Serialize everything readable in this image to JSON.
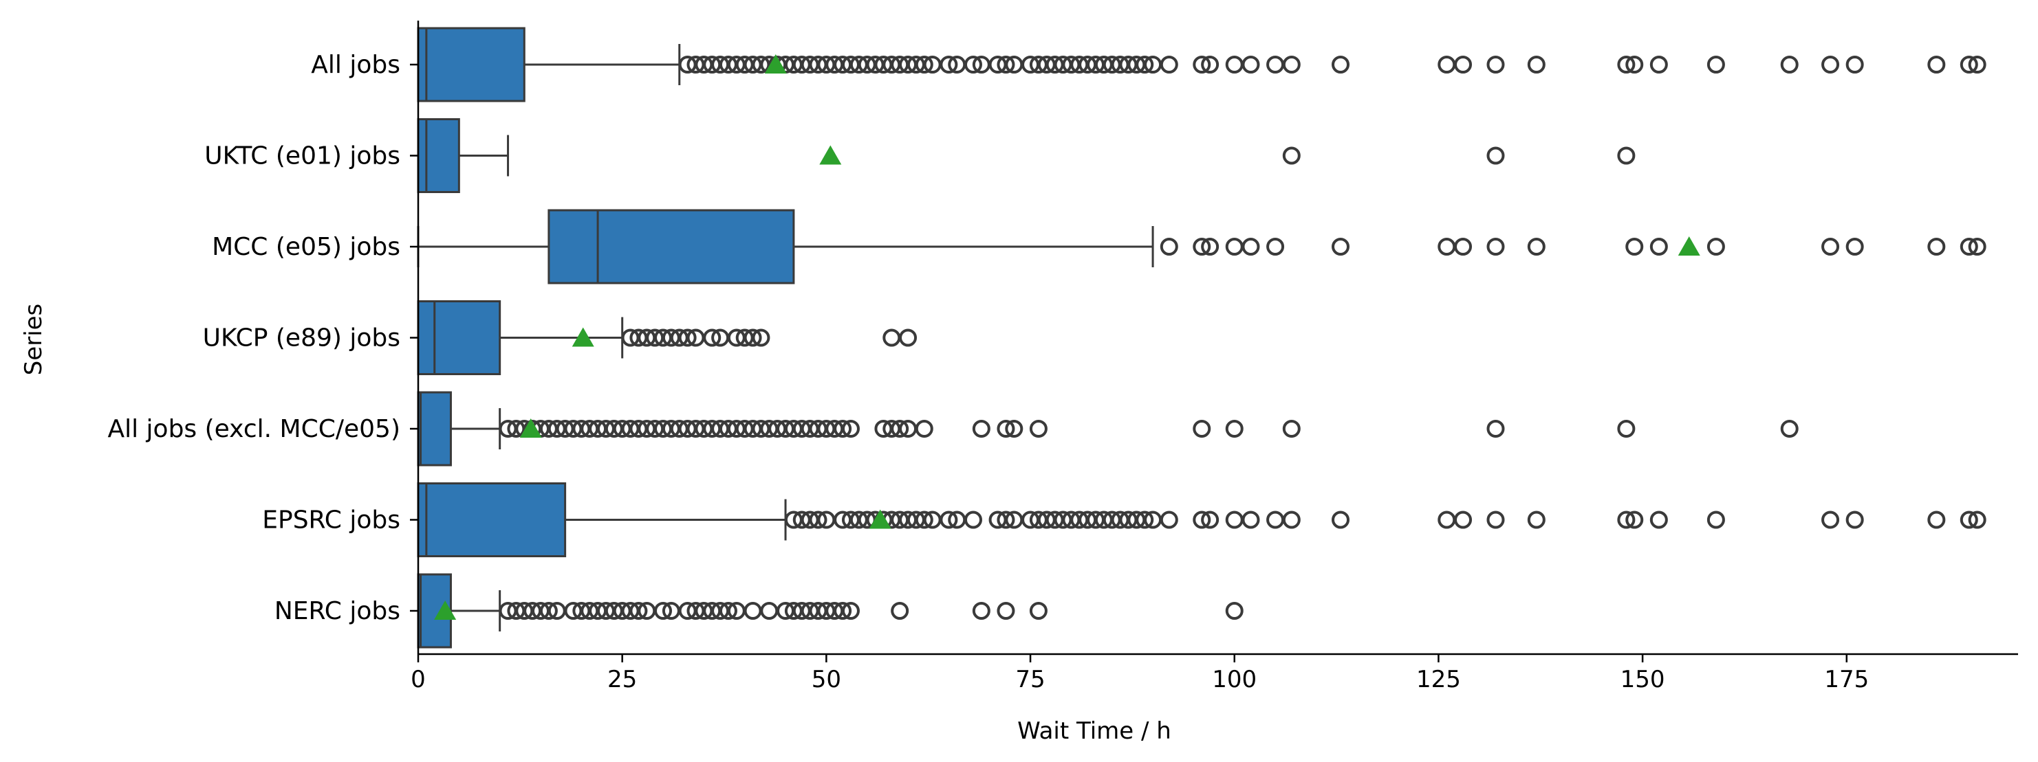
{
  "chart_data": {
    "type": "boxplot",
    "orientation": "horizontal",
    "xlabel": "Wait Time / h",
    "ylabel": "Series",
    "xlim": [
      0,
      196
    ],
    "xticks": [
      0,
      25,
      50,
      75,
      100,
      125,
      150,
      175
    ],
    "grid": false,
    "colors": {
      "box": "#2f77b4",
      "edge": "#3a3a3a",
      "mean_marker": "#2ca02c",
      "outlier_edge": "#3a3a3a"
    },
    "series": [
      {
        "name": "All jobs",
        "whisker_low": 0,
        "q1": 0,
        "median": 1,
        "q3": 13,
        "whisker_high": 32,
        "mean": 43.8,
        "outliers": [
          33,
          34,
          35,
          36,
          37,
          38,
          39,
          40,
          41,
          42,
          43,
          44,
          45,
          46,
          47,
          48,
          49,
          50,
          51,
          52,
          53,
          54,
          55,
          56,
          57,
          58,
          59,
          60,
          61,
          62,
          63,
          65,
          66,
          68,
          69,
          71,
          72,
          73,
          75,
          76,
          77,
          78,
          79,
          80,
          81,
          82,
          83,
          84,
          85,
          86,
          87,
          88,
          89,
          90,
          92,
          96,
          97,
          100,
          102,
          105,
          107,
          113,
          126,
          128,
          132,
          137,
          148,
          149,
          152,
          159,
          168,
          173,
          176,
          186,
          190,
          191
        ]
      },
      {
        "name": "UKTC (e01) jobs",
        "whisker_low": 0,
        "q1": 0,
        "median": 1,
        "q3": 5,
        "whisker_high": 11,
        "mean": 50.5,
        "outliers": [
          107,
          132,
          148
        ]
      },
      {
        "name": "MCC (e05) jobs",
        "whisker_low": 0,
        "q1": 16,
        "median": 22,
        "q3": 46,
        "whisker_high": 90,
        "mean": 155.7,
        "outliers": [
          92,
          96,
          97,
          100,
          102,
          105,
          113,
          126,
          128,
          132,
          137,
          149,
          152,
          159,
          173,
          176,
          186,
          190,
          191
        ]
      },
      {
        "name": "UKCP (e89) jobs",
        "whisker_low": 0,
        "q1": 0,
        "median": 2,
        "q3": 10,
        "whisker_high": 25,
        "mean": 20.2,
        "outliers": [
          26,
          27,
          28,
          29,
          30,
          31,
          32,
          33,
          34,
          36,
          37,
          39,
          40,
          41,
          42,
          58,
          60
        ]
      },
      {
        "name": "All jobs (excl. MCC/e05)",
        "whisker_low": 0,
        "q1": 0,
        "median": 0.3,
        "q3": 4,
        "whisker_high": 10,
        "mean": 13.8,
        "outliers": [
          11,
          12,
          13,
          14,
          15,
          16,
          17,
          18,
          19,
          20,
          21,
          22,
          23,
          24,
          25,
          26,
          27,
          28,
          29,
          30,
          31,
          32,
          33,
          34,
          35,
          36,
          37,
          38,
          39,
          40,
          41,
          42,
          43,
          44,
          45,
          46,
          47,
          48,
          49,
          50,
          51,
          52,
          53,
          57,
          58,
          59,
          60,
          62,
          69,
          72,
          73,
          76,
          96,
          100,
          107,
          132,
          148,
          168
        ]
      },
      {
        "name": "EPSRC jobs",
        "whisker_low": 0,
        "q1": 0,
        "median": 1,
        "q3": 18,
        "whisker_high": 45,
        "mean": 56.6,
        "outliers": [
          46,
          47,
          48,
          49,
          50,
          52,
          53,
          54,
          55,
          56,
          57,
          58,
          59,
          60,
          61,
          62,
          63,
          65,
          66,
          68,
          71,
          72,
          73,
          75,
          76,
          77,
          78,
          79,
          80,
          81,
          82,
          83,
          84,
          85,
          86,
          87,
          88,
          89,
          90,
          92,
          96,
          97,
          100,
          102,
          105,
          107,
          113,
          126,
          128,
          132,
          137,
          148,
          149,
          152,
          159,
          173,
          176,
          186,
          190,
          191
        ]
      },
      {
        "name": "NERC jobs",
        "whisker_low": 0,
        "q1": 0,
        "median": 0.3,
        "q3": 4,
        "whisker_high": 10,
        "mean": 3.3,
        "outliers": [
          11,
          12,
          13,
          14,
          15,
          16,
          17,
          19,
          20,
          21,
          22,
          23,
          24,
          25,
          26,
          27,
          28,
          30,
          31,
          33,
          34,
          35,
          36,
          37,
          38,
          39,
          41,
          43,
          45,
          46,
          47,
          48,
          49,
          50,
          51,
          52,
          53,
          59,
          69,
          72,
          76,
          100
        ]
      }
    ]
  }
}
